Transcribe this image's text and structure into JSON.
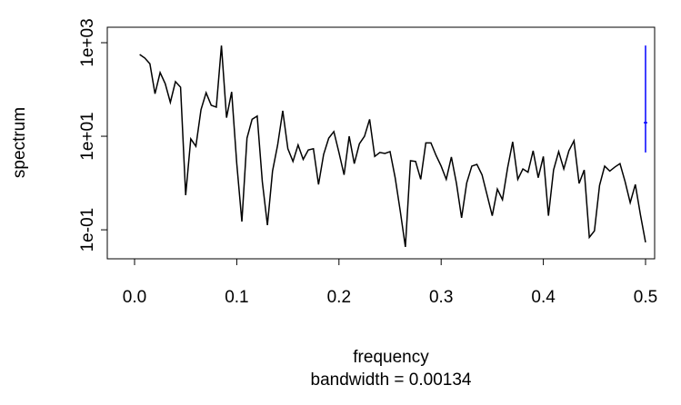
{
  "chart_data": {
    "type": "line",
    "xlabel": "frequency",
    "ylabel": "spectrum",
    "subtitle": "bandwidth = 0.00134",
    "log_y": true,
    "color": "#000000",
    "x": [
      0.005,
      0.01,
      0.015,
      0.02,
      0.025,
      0.03,
      0.035,
      0.04,
      0.045,
      0.05,
      0.055,
      0.06,
      0.065,
      0.07,
      0.075,
      0.08,
      0.085,
      0.09,
      0.095,
      0.1,
      0.105,
      0.11,
      0.115,
      0.12,
      0.125,
      0.13,
      0.135,
      0.14,
      0.145,
      0.15,
      0.155,
      0.16,
      0.165,
      0.17,
      0.175,
      0.18,
      0.185,
      0.19,
      0.195,
      0.2,
      0.205,
      0.21,
      0.215,
      0.22,
      0.225,
      0.23,
      0.235,
      0.24,
      0.245,
      0.25,
      0.255,
      0.26,
      0.265,
      0.27,
      0.275,
      0.28,
      0.285,
      0.29,
      0.295,
      0.3,
      0.305,
      0.31,
      0.315,
      0.32,
      0.325,
      0.33,
      0.335,
      0.34,
      0.345,
      0.35,
      0.355,
      0.36,
      0.365,
      0.37,
      0.375,
      0.38,
      0.385,
      0.39,
      0.395,
      0.4,
      0.405,
      0.41,
      0.415,
      0.42,
      0.425,
      0.43,
      0.435,
      0.44,
      0.445,
      0.45,
      0.455,
      0.46,
      0.465,
      0.47,
      0.475,
      0.48,
      0.485,
      0.49,
      0.495,
      0.5
    ],
    "values": [
      560,
      470,
      355,
      81,
      230,
      133,
      53,
      147,
      112,
      0.55,
      8.8,
      6.1,
      37,
      85,
      46,
      42,
      870,
      25,
      89,
      2.6,
      0.15,
      9.1,
      23,
      27,
      1.07,
      0.126,
      1.8,
      6.5,
      35,
      5.4,
      2.9,
      6.5,
      3.2,
      5.1,
      5.4,
      0.93,
      4.1,
      9.1,
      12.6,
      4.5,
      1.5,
      10,
      2.6,
      6.9,
      10,
      23,
      3.7,
      4.5,
      4.3,
      4.7,
      1.3,
      0.25,
      0.043,
      3.0,
      2.9,
      1.2,
      7.2,
      7.2,
      3.9,
      2.3,
      1.2,
      3.6,
      0.98,
      0.18,
      1.0,
      2.3,
      2.5,
      1.5,
      0.55,
      0.2,
      0.74,
      0.44,
      2.1,
      7.6,
      1.2,
      2.0,
      1.7,
      4.9,
      1.3,
      3.7,
      0.2,
      1.9,
      4.7,
      2.0,
      4.9,
      8.0,
      0.98,
      1.9,
      0.069,
      0.095,
      0.89,
      2.3,
      1.8,
      2.2,
      2.6,
      1.07,
      0.38,
      0.93,
      0.21,
      0.054
    ],
    "ci_bar": {
      "x": 0.5,
      "center": 19.5,
      "low": 4.5,
      "high": 870,
      "color": "#0000ff"
    },
    "xlim": [
      -0.0267,
      0.5089
    ],
    "xticks": [
      {
        "value": 0,
        "label": "0.0"
      },
      0.1,
      0.2,
      0.3,
      0.4,
      0.5
    ],
    "ylim": [
      0.024,
      2140
    ],
    "yticks": [
      {
        "value": 0.1,
        "label": "1e-01"
      },
      {
        "value": 10,
        "label": "1e+01"
      },
      {
        "value": 1000,
        "label": "1e+03"
      }
    ]
  }
}
